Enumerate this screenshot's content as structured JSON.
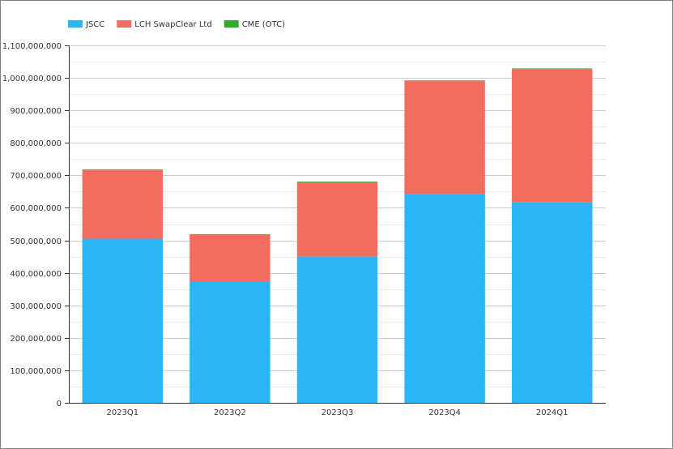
{
  "colors": {
    "frame_border": "#808080",
    "grid": "#cccccc",
    "minor_grid": "#ebebeb",
    "axis": "#333333",
    "text": "#333333"
  },
  "chart_data": {
    "type": "bar",
    "stacked": true,
    "title": "",
    "xlabel": "",
    "ylabel": "",
    "categories": [
      "2023Q1",
      "2023Q2",
      "2023Q3",
      "2023Q4",
      "2024Q1"
    ],
    "series": [
      {
        "name": "JSCC",
        "color": "#29b6f6",
        "values": [
          505000000,
          373000000,
          450000000,
          642000000,
          617000000
        ]
      },
      {
        "name": "LCH SwapClear Ltd",
        "color": "#f36c60",
        "values": [
          211000000,
          144000000,
          229000000,
          348000000,
          410000000
        ]
      },
      {
        "name": "CME (OTC)",
        "color": "#2eaa2e",
        "values": [
          2000000,
          2000000,
          2000000,
          2000000,
          2000000
        ]
      }
    ],
    "ylim": [
      0,
      1100000000
    ],
    "yticks": [
      0,
      100000000,
      200000000,
      300000000,
      400000000,
      500000000,
      600000000,
      700000000,
      800000000,
      900000000,
      1000000000,
      1100000000
    ],
    "ytick_labels": [
      "0",
      "100,000,000",
      "200,000,000",
      "300,000,000",
      "400,000,000",
      "500,000,000",
      "600,000,000",
      "700,000,000",
      "800,000,000",
      "900,000,000",
      "1,000,000,000",
      "1,100,000,000"
    ],
    "grid": true,
    "minor_grid": true,
    "legend_position": "top-left"
  }
}
